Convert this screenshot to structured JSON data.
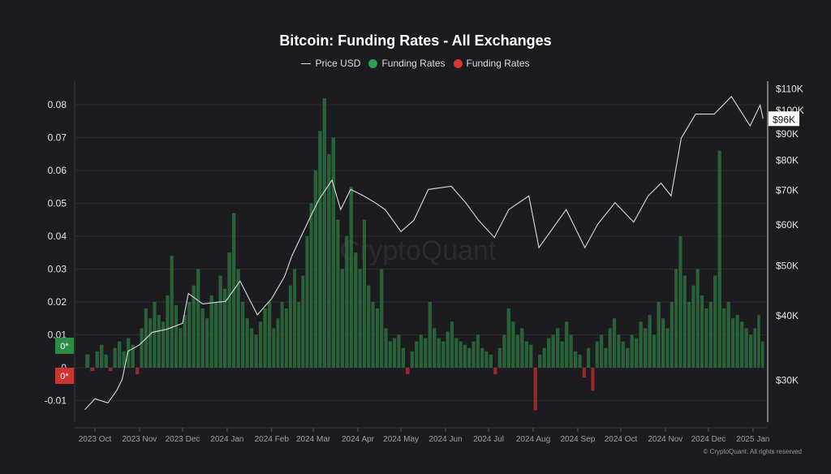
{
  "chart_data": {
    "type": "bar+line",
    "title": "Bitcoin: Funding Rates - All Exchanges",
    "legend": [
      {
        "name": "Price USD",
        "color": "#d9d9d9",
        "kind": "line"
      },
      {
        "name": "Funding Rates",
        "color": "#2e9d4f",
        "kind": "dot"
      },
      {
        "name": "Funding Rates",
        "color": "#d93636",
        "kind": "dot"
      }
    ],
    "legend_placement": "top-center",
    "left_axis": {
      "ticks": [
        "0.08",
        "0.07",
        "0.06",
        "0.05",
        "0.04",
        "0.03",
        "0.02",
        "0.01",
        "0",
        "-0.01"
      ],
      "values": [
        0.08,
        0.07,
        0.06,
        0.05,
        0.04,
        0.03,
        0.02,
        0.01,
        0,
        -0.01
      ],
      "ylim": [
        -0.013,
        0.085
      ]
    },
    "right_axis": {
      "scale": "log",
      "ticks": [
        "$110K",
        "$100K",
        "$90K",
        "$80K",
        "$70K",
        "$60K",
        "$50K",
        "$40K",
        "$30K"
      ],
      "values": [
        110000,
        100000,
        90000,
        80000,
        70000,
        60000,
        50000,
        40000,
        30000
      ]
    },
    "x_ticks": [
      {
        "label": "2023 Oct",
        "date": "2023-10-01"
      },
      {
        "label": "2023 Nov",
        "date": "2023-11-01"
      },
      {
        "label": "2023 Dec",
        "date": "2023-12-01"
      },
      {
        "label": "2024 Jan",
        "date": "2024-01-01"
      },
      {
        "label": "2024 Feb",
        "date": "2024-02-01"
      },
      {
        "label": "2024 Mar",
        "date": "2024-03-01"
      },
      {
        "label": "2024 Apr",
        "date": "2024-04-01"
      },
      {
        "label": "2024 May",
        "date": "2024-05-01"
      },
      {
        "label": "2024 Jun",
        "date": "2024-06-01"
      },
      {
        "label": "2024 Jul",
        "date": "2024-07-01"
      },
      {
        "label": "2024 Aug",
        "date": "2024-08-01"
      },
      {
        "label": "2024 Sep",
        "date": "2024-09-01"
      },
      {
        "label": "2024 Oct",
        "date": "2024-10-01"
      },
      {
        "label": "2024 Nov",
        "date": "2024-11-01"
      },
      {
        "label": "2024 Dec",
        "date": "2024-12-01"
      },
      {
        "label": "2025 Jan",
        "date": "2025-01-01"
      }
    ],
    "current_price_label": "$96K",
    "badges": {
      "positive": "0*",
      "negative": "0*"
    },
    "grid": true,
    "price": [
      [
        "2023-09-24",
        26200
      ],
      [
        "2023-10-01",
        27500
      ],
      [
        "2023-10-10",
        27000
      ],
      [
        "2023-10-16",
        28500
      ],
      [
        "2023-10-20",
        30000
      ],
      [
        "2023-10-24",
        34000
      ],
      [
        "2023-11-01",
        35000
      ],
      [
        "2023-11-10",
        37000
      ],
      [
        "2023-11-20",
        37500
      ],
      [
        "2023-12-01",
        38500
      ],
      [
        "2023-12-05",
        44000
      ],
      [
        "2023-12-15",
        42000
      ],
      [
        "2023-12-31",
        42500
      ],
      [
        "2024-01-10",
        46500
      ],
      [
        "2024-01-22",
        40000
      ],
      [
        "2024-02-01",
        43000
      ],
      [
        "2024-02-10",
        47500
      ],
      [
        "2024-02-15",
        52000
      ],
      [
        "2024-02-28",
        62000
      ],
      [
        "2024-03-05",
        67000
      ],
      [
        "2024-03-14",
        73000
      ],
      [
        "2024-03-20",
        64000
      ],
      [
        "2024-03-27",
        70000
      ],
      [
        "2024-04-05",
        68000
      ],
      [
        "2024-04-13",
        66000
      ],
      [
        "2024-04-20",
        64000
      ],
      [
        "2024-05-01",
        58000
      ],
      [
        "2024-05-10",
        61000
      ],
      [
        "2024-05-20",
        70000
      ],
      [
        "2024-06-05",
        71000
      ],
      [
        "2024-06-15",
        66000
      ],
      [
        "2024-06-24",
        61000
      ],
      [
        "2024-07-05",
        56500
      ],
      [
        "2024-07-15",
        64000
      ],
      [
        "2024-07-29",
        68000
      ],
      [
        "2024-08-05",
        54000
      ],
      [
        "2024-08-24",
        64000
      ],
      [
        "2024-09-06",
        54000
      ],
      [
        "2024-09-15",
        60000
      ],
      [
        "2024-09-27",
        66000
      ],
      [
        "2024-10-10",
        60500
      ],
      [
        "2024-10-20",
        68000
      ],
      [
        "2024-10-29",
        72000
      ],
      [
        "2024-11-05",
        68000
      ],
      [
        "2024-11-12",
        88000
      ],
      [
        "2024-11-22",
        98000
      ],
      [
        "2024-12-05",
        98000
      ],
      [
        "2024-12-17",
        106000
      ],
      [
        "2024-12-30",
        93000
      ],
      [
        "2025-01-06",
        102000
      ],
      [
        "2025-01-08",
        96000
      ]
    ],
    "funding_by_month": {
      "2023-09": [
        0.004,
        -0.001
      ],
      "2023-10": [
        0.005,
        0.007,
        0.004,
        -0.001,
        0.006,
        0.008,
        0.005,
        0.009,
        0.007,
        -0.002
      ],
      "2023-11": [
        0.012,
        0.018,
        0.015,
        0.02,
        0.016,
        0.014,
        0.022,
        0.034,
        0.019,
        0.012
      ],
      "2023-12": [
        0.016,
        0.02,
        0.025,
        0.03,
        0.018,
        0.015,
        0.022,
        0.02,
        0.028,
        0.024
      ],
      "2024-01": [
        0.035,
        0.047,
        0.03,
        0.02,
        0.015,
        0.012,
        0.01,
        0.014,
        0.018,
        0.02
      ],
      "2024-02": [
        0.012,
        0.015,
        0.02,
        0.018,
        0.025,
        0.03,
        0.02,
        0.028,
        0.04,
        0.05
      ],
      "2024-03": [
        0.06,
        0.072,
        0.082,
        0.065,
        0.07,
        0.045,
        0.03,
        0.04,
        0.055,
        0.035
      ],
      "2024-04": [
        0.03,
        0.045,
        0.025,
        0.02,
        0.018,
        0.03,
        0.012,
        0.008,
        0.009,
        0.01
      ],
      "2024-05": [
        0.006,
        -0.002,
        0.005,
        0.008,
        0.01,
        0.009,
        0.02,
        0.012,
        0.009,
        0.008
      ],
      "2024-06": [
        0.011,
        0.014,
        0.009,
        0.008,
        0.007,
        0.006,
        0.008,
        0.01,
        0.006,
        0.005
      ],
      "2024-07": [
        0.004,
        -0.002,
        0.006,
        0.01,
        0.018,
        0.014,
        0.01,
        0.012,
        0.008,
        0.007
      ],
      "2024-08": [
        -0.013,
        0.004,
        0.006,
        0.009,
        0.01,
        0.012,
        0.008,
        0.014,
        0.01,
        0.005
      ],
      "2024-09": [
        0.004,
        -0.003,
        0.006,
        -0.007,
        0.008,
        0.01,
        0.006,
        0.012,
        0.015,
        0.01
      ],
      "2024-10": [
        0.008,
        0.006,
        0.01,
        0.009,
        0.014,
        0.012,
        0.016,
        0.01,
        0.02,
        0.015
      ],
      "2024-11": [
        0.012,
        0.02,
        0.03,
        0.04,
        0.028,
        0.02,
        0.025,
        0.03,
        0.022,
        0.018
      ],
      "2024-12": [
        0.02,
        0.028,
        0.066,
        0.018,
        0.02,
        0.015,
        0.016,
        0.014,
        0.012,
        0.01
      ],
      "2025-01": [
        0.012,
        0.016,
        0.008
      ]
    },
    "watermark": "CryptoQuant"
  },
  "footer": "© CryptoQuant. All rights reserved"
}
